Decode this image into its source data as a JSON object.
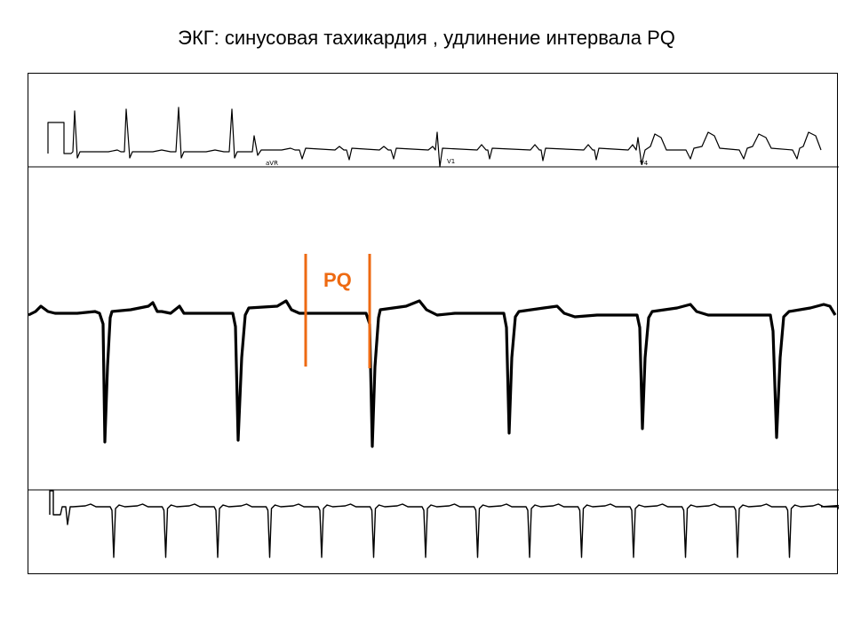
{
  "slide": {
    "title": "ЭКГ: синусовая тахикардия , удлинение интервала PQ"
  },
  "ecg": {
    "top_strip": {
      "lead_labels": [
        "aVR",
        "V1",
        "V4"
      ]
    },
    "annotation": {
      "label": "PQ",
      "color": "#ee6a12"
    }
  }
}
